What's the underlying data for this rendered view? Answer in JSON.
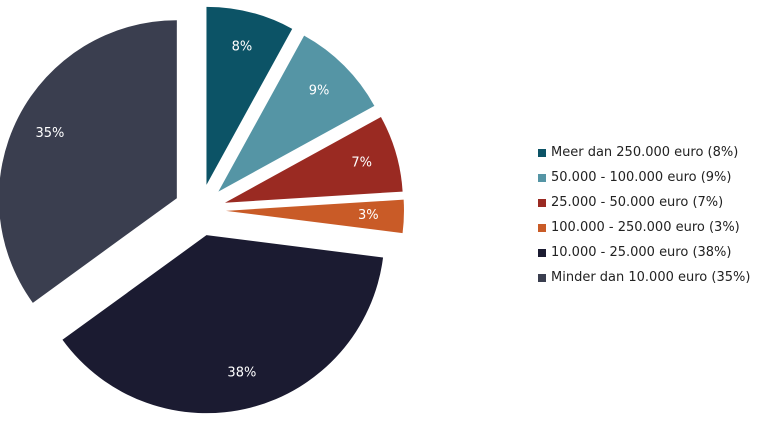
{
  "chart_data": {
    "type": "pie",
    "slices": [
      {
        "label": "Meer dan 250.000 euro (8%)",
        "value_label": "8%",
        "value": 8,
        "color": "#0c5366"
      },
      {
        "label": "50.000 - 100.000 euro (9%)",
        "value_label": "9%",
        "value": 9,
        "color": "#5595a5"
      },
      {
        "label": "25.000 - 50.000 euro (7%)",
        "value_label": "7%",
        "value": 7,
        "color": "#9a2a22"
      },
      {
        "label": "100.000 - 250.000 euro (3%)",
        "value_label": "3%",
        "value": 3,
        "color": "#c95b27"
      },
      {
        "label": "10.000 - 25.000 euro (38%)",
        "value_label": "38%",
        "value": 38,
        "color": "#1b1b31"
      },
      {
        "label": "Minder dan 10.000 euro (35%)",
        "value_label": "35%",
        "value": 35,
        "color": "#3a3e4f"
      }
    ],
    "start_angle_deg": 0,
    "direction": "clockwise",
    "exploded": true,
    "legend_position": "right"
  }
}
